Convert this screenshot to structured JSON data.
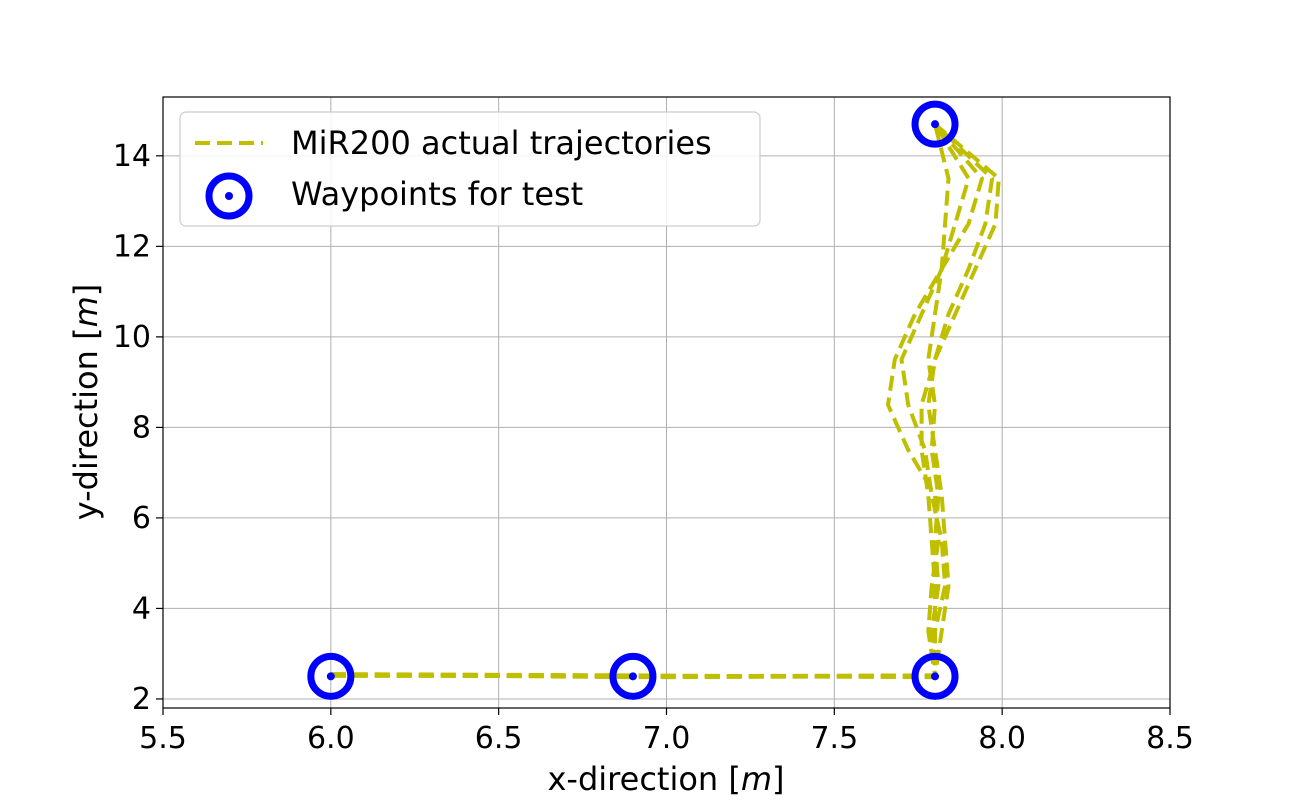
{
  "chart_data": {
    "type": "line",
    "title": "",
    "xlabel": "x-direction [",
    "xlabel_unit": "m",
    "xlabel_close": "]",
    "ylabel": "y-direction [",
    "ylabel_unit": "m",
    "ylabel_close": "]",
    "xlim": [
      5.5,
      8.5
    ],
    "ylim": [
      1.8,
      15.3
    ],
    "xticks": [
      5.5,
      6.0,
      6.5,
      7.0,
      7.5,
      8.0,
      8.5
    ],
    "xtick_labels": [
      "5.5",
      "6.0",
      "6.5",
      "7.0",
      "7.5",
      "8.0",
      "8.5"
    ],
    "yticks": [
      2,
      4,
      6,
      8,
      10,
      12,
      14
    ],
    "ytick_labels": [
      "2",
      "4",
      "6",
      "8",
      "10",
      "12",
      "14"
    ],
    "grid": true,
    "legend_position": "top-left",
    "colors": {
      "trajectory": "#bfbf00",
      "waypoint": "#0000ff",
      "grid": "#b0b0b0",
      "axes": "#000000"
    },
    "series": [
      {
        "name": "MiR200 actual trajectories",
        "style": "dashed",
        "runs": [
          [
            [
              6.0,
              2.52
            ],
            [
              6.9,
              2.5
            ],
            [
              7.8,
              2.5
            ],
            [
              7.79,
              3.5
            ],
            [
              7.81,
              4.5
            ],
            [
              7.8,
              5.5
            ],
            [
              7.81,
              6.5
            ],
            [
              7.79,
              7.5
            ],
            [
              7.8,
              8.5
            ],
            [
              7.78,
              9.5
            ],
            [
              7.8,
              10.5
            ],
            [
              7.82,
              11.5
            ],
            [
              7.83,
              12.5
            ],
            [
              7.84,
              13.5
            ],
            [
              7.8,
              14.7
            ]
          ],
          [
            [
              6.0,
              2.55
            ],
            [
              6.9,
              2.52
            ],
            [
              7.8,
              2.48
            ],
            [
              7.8,
              3.5
            ],
            [
              7.83,
              4.5
            ],
            [
              7.82,
              5.5
            ],
            [
              7.79,
              6.5
            ],
            [
              7.77,
              7.5
            ],
            [
              7.72,
              8.5
            ],
            [
              7.7,
              9.5
            ],
            [
              7.76,
              10.5
            ],
            [
              7.82,
              11.5
            ],
            [
              7.86,
              12.5
            ],
            [
              7.9,
              13.5
            ],
            [
              7.8,
              14.7
            ]
          ],
          [
            [
              6.0,
              2.53
            ],
            [
              6.9,
              2.5
            ],
            [
              7.8,
              2.52
            ],
            [
              7.78,
              3.5
            ],
            [
              7.79,
              4.5
            ],
            [
              7.81,
              5.5
            ],
            [
              7.8,
              6.5
            ],
            [
              7.72,
              7.5
            ],
            [
              7.66,
              8.5
            ],
            [
              7.68,
              9.5
            ],
            [
              7.74,
              10.5
            ],
            [
              7.82,
              11.5
            ],
            [
              7.9,
              12.5
            ],
            [
              7.94,
              13.5
            ],
            [
              7.8,
              14.7
            ]
          ],
          [
            [
              6.0,
              2.54
            ],
            [
              6.9,
              2.48
            ],
            [
              7.8,
              2.5
            ],
            [
              7.82,
              3.5
            ],
            [
              7.84,
              4.5
            ],
            [
              7.83,
              5.5
            ],
            [
              7.82,
              6.5
            ],
            [
              7.8,
              7.5
            ],
            [
              7.78,
              8.5
            ],
            [
              7.8,
              9.5
            ],
            [
              7.84,
              10.5
            ],
            [
              7.9,
              11.5
            ],
            [
              7.95,
              12.5
            ],
            [
              7.97,
              13.5
            ],
            [
              7.8,
              14.7
            ]
          ],
          [
            [
              6.0,
              2.51
            ],
            [
              6.9,
              2.51
            ],
            [
              7.8,
              2.49
            ],
            [
              7.8,
              3.5
            ],
            [
              7.8,
              4.5
            ],
            [
              7.79,
              5.5
            ],
            [
              7.78,
              6.5
            ],
            [
              7.76,
              7.5
            ],
            [
              7.76,
              8.5
            ],
            [
              7.8,
              9.5
            ],
            [
              7.86,
              10.5
            ],
            [
              7.92,
              11.5
            ],
            [
              7.98,
              12.5
            ],
            [
              7.99,
              13.5
            ],
            [
              7.8,
              14.7
            ]
          ]
        ]
      },
      {
        "name": "Waypoints for test",
        "style": "ring-marker",
        "points": [
          [
            6.0,
            2.5
          ],
          [
            6.9,
            2.5
          ],
          [
            7.8,
            2.5
          ],
          [
            7.8,
            14.7
          ]
        ]
      }
    ]
  }
}
